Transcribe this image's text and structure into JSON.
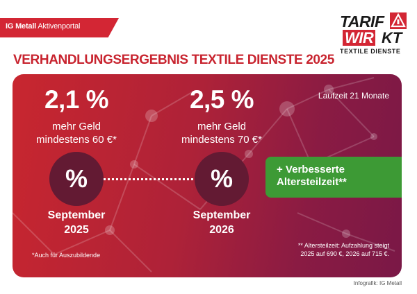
{
  "header": {
    "brand": "IG Metall",
    "portal": "Aktivenportal"
  },
  "logo": {
    "word1": "TARIF",
    "word2a": "WIR",
    "word2b": "KT",
    "subtitle": "TEXTILE DIENSTE",
    "badge_color": "#d32634"
  },
  "title": "VERHANDLUNGSERGEBNIS TEXTILE DIENSTE 2025",
  "colors": {
    "brand_red": "#d32634",
    "panel_dark": "#7a1846",
    "circle": "#631a33",
    "green": "#3d9a35"
  },
  "steps": [
    {
      "percent": "2,1 %",
      "line1": "mehr Geld",
      "line2": "mindestens 60 €*",
      "symbol": "%",
      "month": "September",
      "year": "2025"
    },
    {
      "percent": "2,5 %",
      "line1": "mehr Geld",
      "line2": "mindestens 70 €*",
      "symbol": "%",
      "month": "September",
      "year": "2026"
    }
  ],
  "runtime": "Laufzeit 21 Monate",
  "extra": {
    "line1": "+ Verbesserte",
    "line2": "Altersteilzeit**"
  },
  "footnotes": {
    "trainees": "*Auch für Auszubildende",
    "atz_line1": "** Altersteilzeit: Aufzahlung steigt",
    "atz_line2": "2025 auf 690 €, 2026 auf 715 €."
  },
  "credit": "Infografik: IG Metall"
}
